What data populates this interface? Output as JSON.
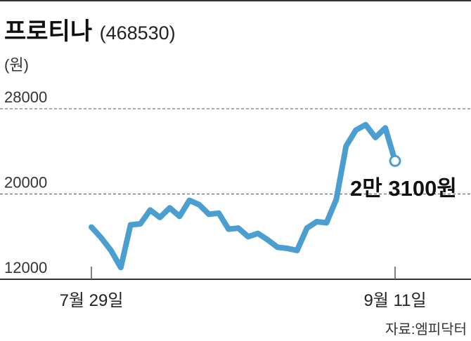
{
  "chart_data": {
    "type": "line",
    "title": "프로티나",
    "subtitle": "(468530)",
    "unit": "(원)",
    "ylim": [
      12000,
      28000
    ],
    "y_ticks": [
      "28000",
      "20000",
      "12000"
    ],
    "x_ticks": [
      "7월 29일",
      "9월 11일"
    ],
    "series": [
      {
        "values": [
          16900,
          15900,
          14700,
          13100,
          17100,
          17200,
          18500,
          17800,
          18700,
          17900,
          19400,
          19000,
          18100,
          18200,
          16700,
          16800,
          16000,
          16300,
          15700,
          15000,
          14900,
          14700,
          16800,
          17400,
          17300,
          19500,
          24500,
          26000,
          26500,
          25300,
          26200,
          23100
        ],
        "color": "#4a9fd0"
      }
    ],
    "callout": "2만 3100원",
    "grid": "dashed horizontal",
    "source": "자료:엠피닥터"
  }
}
